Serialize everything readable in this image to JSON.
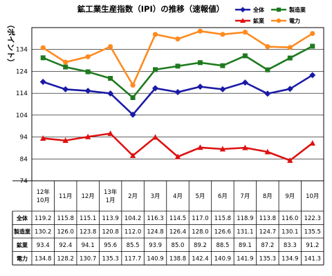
{
  "chart_data": {
    "type": "line",
    "title": "鉱工業生産指数（IPI）の推移（速報値）",
    "ylabel": "（ポイント）",
    "yticks": [
      74,
      84,
      94,
      104,
      114,
      124,
      134
    ],
    "ylim": [
      74,
      144
    ],
    "grid": true,
    "legend": "top-right",
    "categories": [
      "12年\n10月",
      "11月",
      "12月",
      "13年\n1月",
      "2月",
      "3月",
      "4月",
      "5月",
      "6月",
      "7月",
      "8月",
      "9月",
      "10月"
    ],
    "series": [
      {
        "name": "全体",
        "color": "#1a1aa6",
        "marker": "diamond",
        "values": [
          119.2,
          115.8,
          115.1,
          113.9,
          104.2,
          116.3,
          114.5,
          117.0,
          115.8,
          118.9,
          113.8,
          116.0,
          122.3
        ]
      },
      {
        "name": "製造業",
        "color": "#1f7a1f",
        "marker": "square",
        "values": [
          130.2,
          126.0,
          123.8,
          120.8,
          112.0,
          124.8,
          126.4,
          128.0,
          126.6,
          131.1,
          124.7,
          130.1,
          135.5
        ]
      },
      {
        "name": "鉱業",
        "color": "#dd1111",
        "marker": "triangle",
        "values": [
          93.4,
          92.4,
          94.1,
          95.6,
          85.5,
          93.9,
          85.0,
          89.2,
          88.5,
          89.1,
          87.2,
          83.3,
          91.2
        ]
      },
      {
        "name": "電力",
        "color": "#ff8a1f",
        "marker": "circle",
        "values": [
          134.8,
          128.2,
          130.7,
          135.3,
          117.7,
          140.9,
          138.8,
          142.4,
          140.9,
          141.9,
          135.3,
          134.9,
          141.3
        ]
      }
    ],
    "table_rows": [
      "全体",
      "製造業",
      "鉱業",
      "電力"
    ]
  }
}
